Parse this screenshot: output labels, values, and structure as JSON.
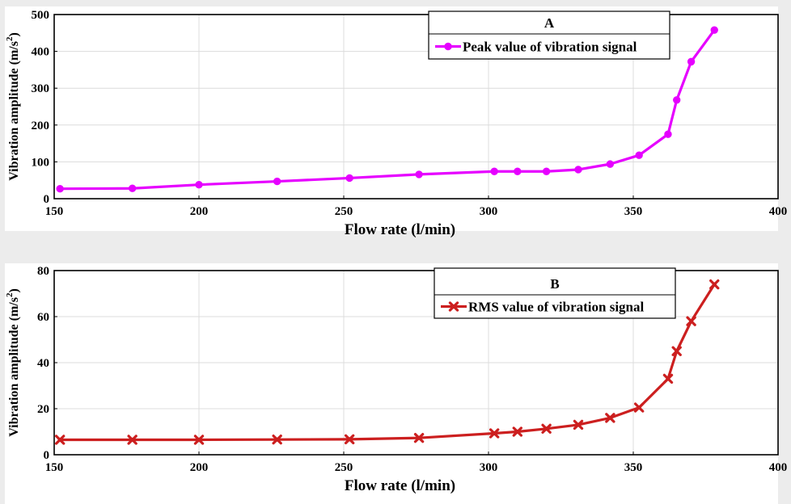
{
  "chart_data": [
    {
      "type": "line",
      "panel_label": "A",
      "xlabel": "Flow rate (l/min)",
      "ylabel": "Vibration amplitude  (m/s",
      "ylabel_sup": "2",
      "ylabel_close": ")",
      "xlim": [
        150,
        400
      ],
      "ylim": [
        0,
        500
      ],
      "xticks": [
        150,
        200,
        250,
        300,
        350,
        400
      ],
      "yticks": [
        0,
        100,
        200,
        300,
        400,
        500
      ],
      "grid": true,
      "legend_placement": "top-right",
      "series": [
        {
          "name": "Peak value of vibration signal",
          "color": "#e600ff",
          "marker": "circle",
          "x": [
            152,
            177,
            200,
            227,
            252,
            276,
            302,
            310,
            320,
            331,
            342,
            352,
            362,
            365,
            370,
            378
          ],
          "y": [
            27,
            28,
            38,
            47,
            56,
            66,
            74,
            74,
            74,
            79,
            94,
            118,
            175,
            268,
            372,
            458
          ]
        }
      ]
    },
    {
      "type": "line",
      "panel_label": "B",
      "xlabel": "Flow rate (l/min)",
      "ylabel": "Vibration amplitude  (m/s",
      "ylabel_sup": "2",
      "ylabel_close": ")",
      "xlim": [
        150,
        400
      ],
      "ylim": [
        0,
        80
      ],
      "xticks": [
        150,
        200,
        250,
        300,
        350,
        400
      ],
      "yticks": [
        0,
        20,
        40,
        60,
        80
      ],
      "grid": true,
      "legend_placement": "top-right",
      "series": [
        {
          "name": "RMS value of vibration signal",
          "color": "#cc1f1f",
          "marker": "x",
          "x": [
            152,
            177,
            200,
            227,
            252,
            276,
            302,
            310,
            320,
            331,
            342,
            352,
            362,
            365,
            370,
            378
          ],
          "y": [
            6.5,
            6.5,
            6.5,
            6.6,
            6.7,
            7.3,
            9.3,
            10.0,
            11.3,
            13.0,
            16.0,
            20.5,
            33.0,
            45.0,
            58.0,
            74.0
          ]
        }
      ]
    }
  ]
}
